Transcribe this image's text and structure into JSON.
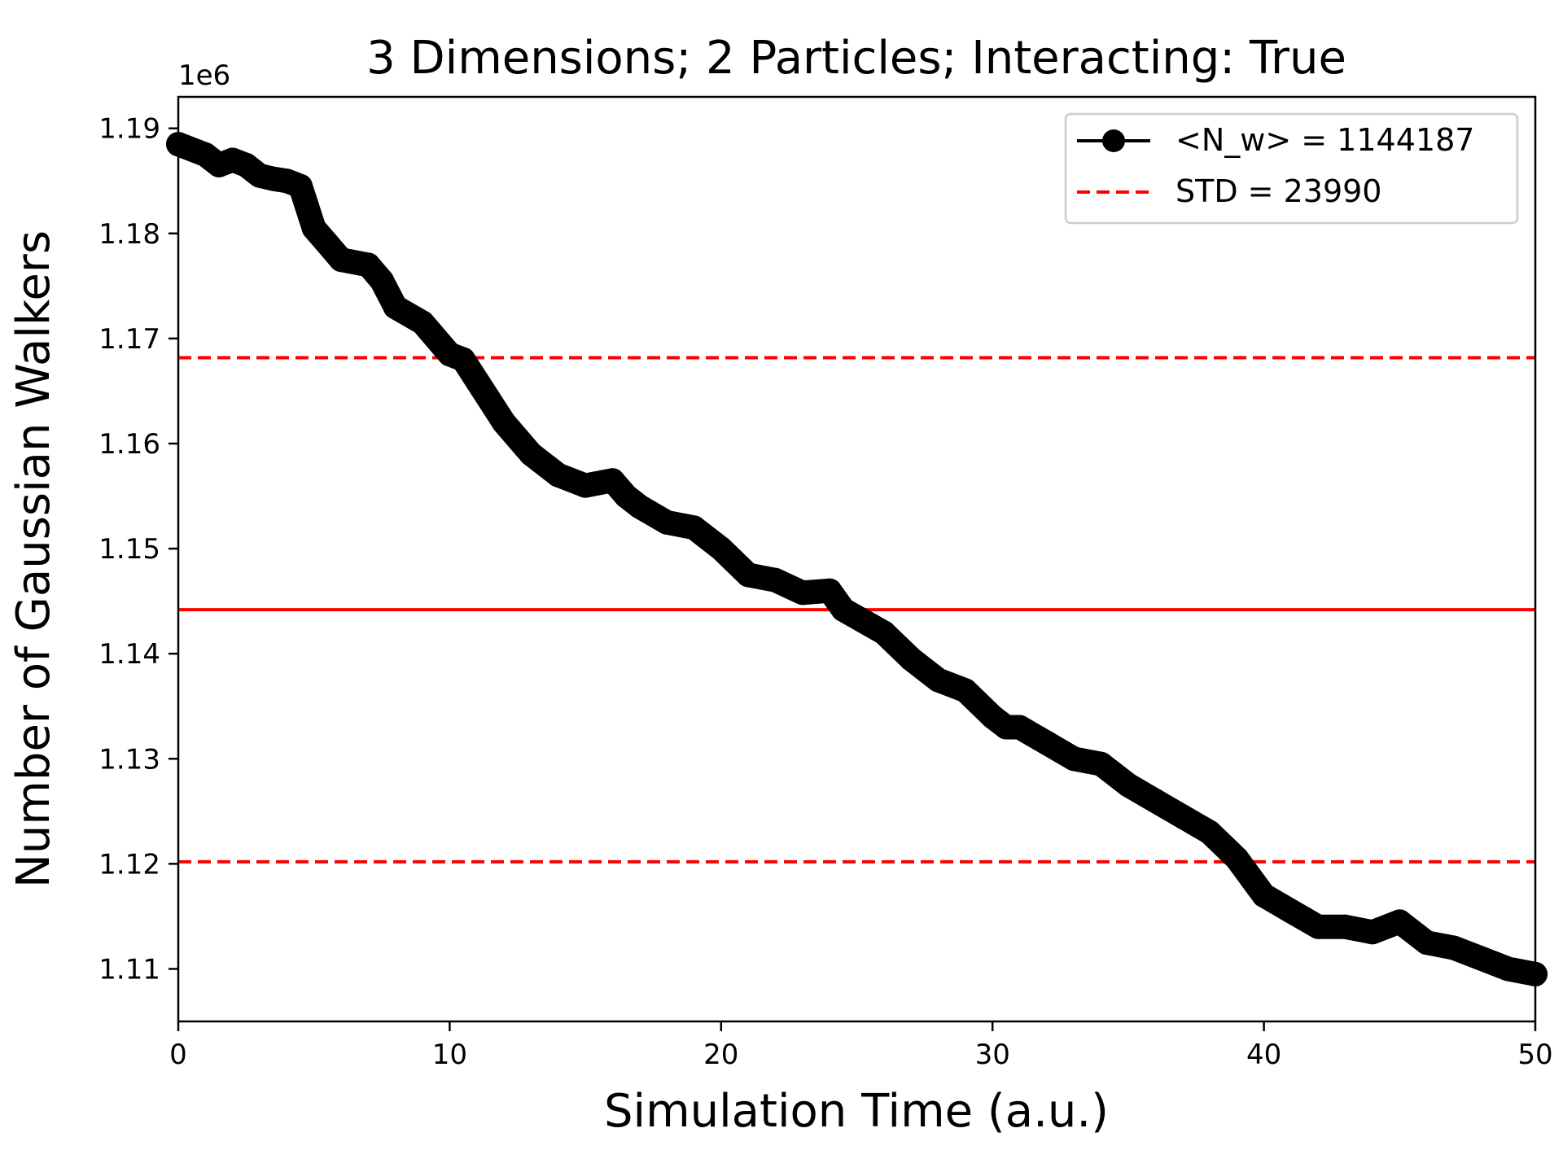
{
  "chart_data": {
    "type": "line",
    "title": "3 Dimensions; 2 Particles; Interacting: True",
    "xlabel": "Simulation Time (a.u.)",
    "ylabel": "Number of Gaussian Walkers",
    "y_offset_label": "1e6",
    "xlim": [
      0,
      50
    ],
    "ylim": [
      1105000,
      1193000
    ],
    "x_ticks": [
      0,
      10,
      20,
      30,
      40,
      50
    ],
    "x_tick_labels": [
      "0",
      "10",
      "20",
      "30",
      "40",
      "50"
    ],
    "y_ticks": [
      1110000,
      1120000,
      1130000,
      1140000,
      1150000,
      1160000,
      1170000,
      1180000,
      1190000
    ],
    "y_tick_labels": [
      "1.11",
      "1.12",
      "1.13",
      "1.14",
      "1.15",
      "1.16",
      "1.17",
      "1.18",
      "1.19"
    ],
    "grid": false,
    "legend_position": "top-right",
    "series": [
      {
        "name": "<N_w> = 1144187",
        "color": "#000000",
        "style": "line-with-markers",
        "x": [
          0,
          1,
          1.5,
          2,
          2.5,
          3,
          3.5,
          4,
          4.5,
          5,
          5.5,
          6,
          7,
          7.5,
          8,
          9,
          10,
          10.5,
          11,
          12,
          13,
          14,
          15,
          16,
          16.5,
          17,
          18,
          19,
          20,
          21,
          22,
          23,
          24,
          24.5,
          26,
          27,
          28,
          29,
          30,
          30.5,
          31,
          32,
          33,
          34,
          35,
          36,
          37,
          38,
          39,
          40,
          41,
          42,
          43,
          44,
          45,
          46,
          47,
          48,
          49,
          50
        ],
        "y": [
          1188500,
          1187500,
          1186500,
          1187000,
          1186500,
          1185500,
          1185200,
          1185000,
          1184500,
          1180500,
          1179000,
          1177500,
          1177000,
          1175500,
          1173000,
          1171500,
          1168500,
          1168000,
          1166000,
          1162000,
          1159000,
          1157000,
          1156000,
          1156500,
          1155000,
          1154000,
          1152500,
          1152000,
          1150000,
          1147500,
          1147000,
          1145800,
          1146000,
          1144200,
          1142000,
          1139500,
          1137500,
          1136500,
          1134000,
          1133000,
          1133000,
          1131500,
          1130000,
          1129500,
          1127500,
          1126000,
          1124500,
          1123000,
          1120500,
          1117000,
          1115500,
          1114000,
          1114000,
          1113500,
          1114500,
          1112500,
          1112000,
          1111000,
          1110000,
          1109500
        ]
      },
      {
        "name": "STD = 23990",
        "color": "#ff0000",
        "style": "dashed",
        "y_values": [
          1168177,
          1120197
        ]
      },
      {
        "name": "mean",
        "color": "#ff0000",
        "style": "solid",
        "y_values": [
          1144187
        ]
      }
    ]
  }
}
